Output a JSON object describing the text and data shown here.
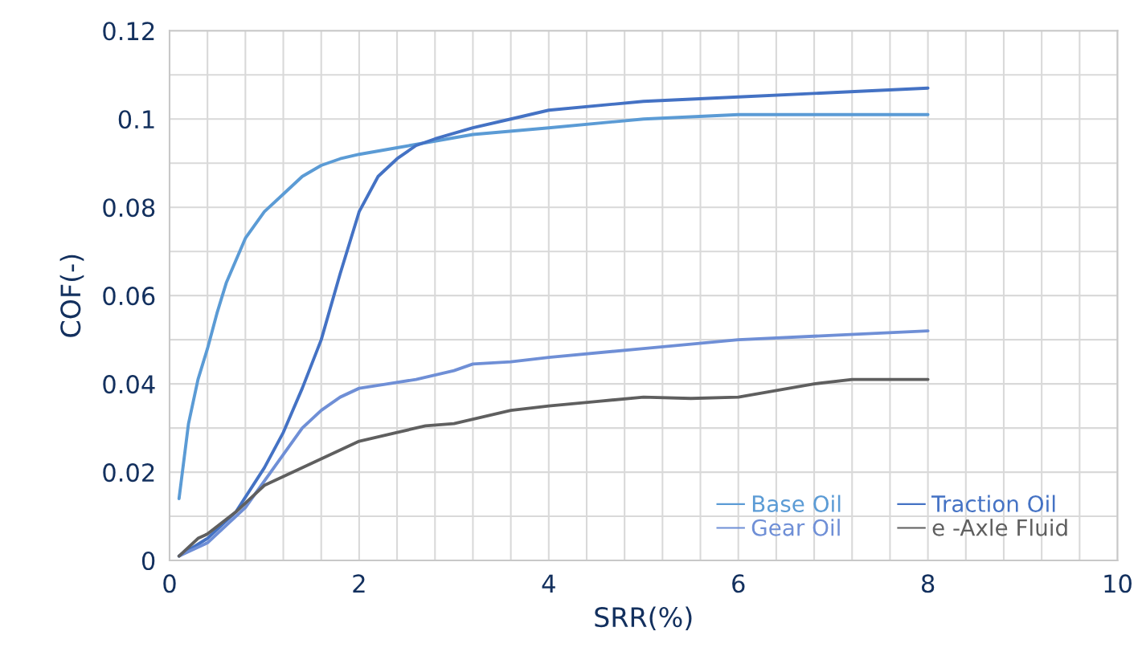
{
  "chart_data": {
    "type": "line",
    "xlabel": "SRR(%)",
    "ylabel": "COF(-)",
    "xlim": [
      0,
      10
    ],
    "ylim": [
      0,
      0.12
    ],
    "xticks": [
      0,
      {
        "value": 0.4,
        "label": null
      },
      {
        "value": 0.8,
        "label": null
      },
      {
        "value": 1.2,
        "label": null
      },
      {
        "value": 1.6,
        "label": null
      },
      2,
      {
        "value": 2.4,
        "label": null
      },
      {
        "value": 2.8,
        "label": null
      },
      {
        "value": 3.2,
        "label": null
      },
      {
        "value": 3.6,
        "label": null
      },
      4,
      {
        "value": 4.4,
        "label": null
      },
      {
        "value": 4.8,
        "label": null
      },
      {
        "value": 5.2,
        "label": null
      },
      {
        "value": 5.6,
        "label": null
      },
      6,
      {
        "value": 6.4,
        "label": null
      },
      {
        "value": 6.8,
        "label": null
      },
      {
        "value": 7.2,
        "label": null
      },
      {
        "value": 7.6,
        "label": null
      },
      8,
      {
        "value": 8.4,
        "label": null
      },
      {
        "value": 8.8,
        "label": null
      },
      {
        "value": 9.2,
        "label": null
      },
      {
        "value": 9.6,
        "label": null
      },
      10
    ],
    "yticks": [
      0,
      {
        "value": 0.01,
        "label": null
      },
      0.02,
      {
        "value": 0.03,
        "label": null
      },
      0.04,
      {
        "value": 0.05,
        "label": null
      },
      0.06,
      {
        "value": 0.07,
        "label": null
      },
      0.08,
      {
        "value": 0.09,
        "label": null
      },
      0.1,
      {
        "value": 0.11,
        "label": null
      },
      0.12
    ],
    "grid": true,
    "legend": "bottom right",
    "marker": "none",
    "line_style": "solid",
    "series": [
      {
        "name": "Base Oil",
        "color": "#5b9bd5",
        "x": [
          0.1,
          0.2,
          0.3,
          0.4,
          0.5,
          0.6,
          0.7,
          0.8,
          1.0,
          1.2,
          1.4,
          1.6,
          1.8,
          2.0,
          2.4,
          2.8,
          3.2,
          4,
          5,
          6,
          7,
          8
        ],
        "values": [
          0.014,
          0.031,
          0.041,
          0.048,
          0.056,
          0.063,
          0.068,
          0.073,
          0.079,
          0.083,
          0.087,
          0.0895,
          0.091,
          0.092,
          0.0935,
          0.095,
          0.0965,
          0.098,
          0.1,
          0.101,
          0.101,
          0.101
        ]
      },
      {
        "name": "Traction Oil",
        "color": "#4472c4",
        "x": [
          0.1,
          0.4,
          0.7,
          1.0,
          1.2,
          1.4,
          1.6,
          1.8,
          2.0,
          2.2,
          2.4,
          2.6,
          2.8,
          3.2,
          3.6,
          4,
          5,
          6,
          7,
          8
        ],
        "values": [
          0.001,
          0.005,
          0.011,
          0.021,
          0.029,
          0.039,
          0.05,
          0.065,
          0.079,
          0.087,
          0.091,
          0.094,
          0.0955,
          0.098,
          0.1,
          0.102,
          0.104,
          0.105,
          0.106,
          0.107
        ]
      },
      {
        "name": "Gear Oil",
        "color": "#6f8fd6",
        "x": [
          0.1,
          0.4,
          0.8,
          1.0,
          1.2,
          1.4,
          1.6,
          1.8,
          2.0,
          2.3,
          2.6,
          3.0,
          3.2,
          3.6,
          4,
          5,
          6,
          7,
          8
        ],
        "values": [
          0.001,
          0.004,
          0.012,
          0.018,
          0.024,
          0.03,
          0.034,
          0.037,
          0.039,
          0.04,
          0.041,
          0.043,
          0.0445,
          0.045,
          0.046,
          0.048,
          0.05,
          0.051,
          0.052
        ]
      },
      {
        "name": "e -Axle Fluid",
        "color": "#5f5f5f",
        "x": [
          0.1,
          0.3,
          0.4,
          0.7,
          1.0,
          1.3,
          1.6,
          2.0,
          2.4,
          2.7,
          3.0,
          3.2,
          3.6,
          4,
          4.5,
          5,
          5.5,
          6,
          6.4,
          6.8,
          7.2,
          7.6,
          8
        ],
        "values": [
          0.001,
          0.005,
          0.006,
          0.011,
          0.017,
          0.02,
          0.023,
          0.027,
          0.029,
          0.0305,
          0.031,
          0.032,
          0.034,
          0.035,
          0.036,
          0.037,
          0.0367,
          0.037,
          0.0385,
          0.04,
          0.041,
          0.041,
          0.041
        ]
      }
    ]
  }
}
